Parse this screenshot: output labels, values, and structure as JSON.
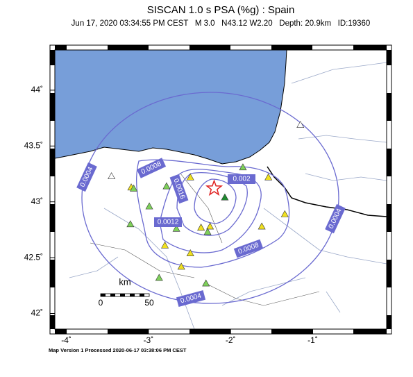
{
  "map": {
    "title": "SISCAN 1.0 s PSA (%g) : Spain",
    "subtitle": "Jun 17, 2020 03:34:55 PM CEST   M 3.0   N43.12 W2.20   Depth: 20.9km   ID:19360",
    "lon_range": [
      -4.14,
      -0.1
    ],
    "lat_range": [
      41.86,
      44.36
    ],
    "lat_ticks": [
      {
        "value": 44,
        "label": "44˚"
      },
      {
        "value": 43.5,
        "label": "43.5˚"
      },
      {
        "value": 43,
        "label": "43˚"
      },
      {
        "value": 42.5,
        "label": "42.5˚"
      },
      {
        "value": 42,
        "label": "42˚"
      }
    ],
    "lon_ticks": [
      {
        "value": -4,
        "label": "-4˚"
      },
      {
        "value": -3,
        "label": "-3˚"
      },
      {
        "value": -2,
        "label": "-2˚"
      },
      {
        "value": -1,
        "label": "-1˚"
      }
    ],
    "epicenter": {
      "lon": -2.2,
      "lat": 43.12,
      "color": "#e02020"
    },
    "contour_labels": [
      "0.0004",
      "0.0008",
      "0.0016",
      "0.002",
      "0.0012",
      "0.0008",
      "0.0004",
      "0.0004"
    ],
    "scale_bar": {
      "unit": "km",
      "start": "0",
      "end": "50"
    },
    "stations": [
      {
        "lon": -3.45,
        "lat": 43.23,
        "color": "#ffffff"
      },
      {
        "lon": -3.21,
        "lat": 43.13,
        "color": "#f0e020"
      },
      {
        "lon": -3.18,
        "lat": 43.12,
        "color": "#7ed05a"
      },
      {
        "lon": -2.78,
        "lat": 43.14,
        "color": "#7ed05a"
      },
      {
        "lon": -2.49,
        "lat": 43.22,
        "color": "#f0e020"
      },
      {
        "lon": -2.99,
        "lat": 42.96,
        "color": "#7ed05a"
      },
      {
        "lon": -3.22,
        "lat": 42.8,
        "color": "#7ed05a"
      },
      {
        "lon": -2.36,
        "lat": 42.77,
        "color": "#f0e020"
      },
      {
        "lon": -2.25,
        "lat": 42.78,
        "color": "#f0e020"
      },
      {
        "lon": -2.28,
        "lat": 42.73,
        "color": "#7ed05a"
      },
      {
        "lon": -2.66,
        "lat": 42.76,
        "color": "#7ed05a"
      },
      {
        "lon": -2.8,
        "lat": 42.61,
        "color": "#f0e020"
      },
      {
        "lon": -2.49,
        "lat": 42.54,
        "color": "#f0e020"
      },
      {
        "lon": -2.6,
        "lat": 42.42,
        "color": "#f0e020"
      },
      {
        "lon": -2.87,
        "lat": 42.32,
        "color": "#7ed05a"
      },
      {
        "lon": -2.3,
        "lat": 42.27,
        "color": "#7ed05a"
      },
      {
        "lon": -1.85,
        "lat": 43.31,
        "color": "#7ed05a"
      },
      {
        "lon": -2.07,
        "lat": 43.04,
        "color": "#208a30"
      },
      {
        "lon": -1.54,
        "lat": 43.22,
        "color": "#f0e020"
      },
      {
        "lon": -1.34,
        "lat": 42.89,
        "color": "#f0e020"
      },
      {
        "lon": -1.62,
        "lat": 42.78,
        "color": "#f0e020"
      },
      {
        "lon": -1.15,
        "lat": 43.69,
        "color": "#ffffff"
      }
    ],
    "footer": "Map Version 1 Processed 2020-06-17 03:38:06 PM CEST"
  }
}
